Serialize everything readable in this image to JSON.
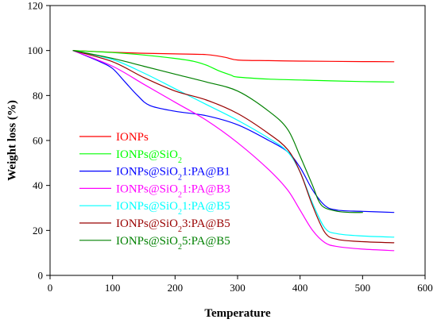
{
  "chart_data": {
    "type": "line",
    "title": "",
    "xlabel": "Temperature",
    "ylabel": "Weight loss (%)",
    "xlim": [
      0,
      600
    ],
    "ylim": [
      0,
      120
    ],
    "xticks": [
      0,
      100,
      200,
      300,
      400,
      500,
      600
    ],
    "yticks": [
      0,
      20,
      40,
      60,
      80,
      100,
      120
    ],
    "grid": false,
    "legend_position": "bottom-left",
    "series": [
      {
        "name": "IONPs",
        "color": "#ff0000",
        "x": [
          37,
          100,
          150,
          200,
          250,
          280,
          300,
          350,
          400,
          450,
          500,
          550
        ],
        "y": [
          100,
          99.2,
          98.8,
          98.5,
          98.2,
          97,
          95.8,
          95.5,
          95.3,
          95.2,
          95.1,
          95
        ]
      },
      {
        "name": "IONPs@SiO_2",
        "color": "#00ff00",
        "x": [
          37,
          100,
          150,
          200,
          230,
          250,
          270,
          290,
          300,
          350,
          400,
          450,
          500,
          550
        ],
        "y": [
          100,
          99.1,
          98,
          96.5,
          95.2,
          93.5,
          91,
          89,
          88.2,
          87.3,
          86.9,
          86.5,
          86.2,
          86
        ]
      },
      {
        "name": "IONPs@SiO_21:PA@B1",
        "color": "#0000ff",
        "x": [
          37,
          80,
          100,
          120,
          140,
          160,
          200,
          250,
          300,
          350,
          380,
          400,
          420,
          440,
          460,
          500,
          550
        ],
        "y": [
          100,
          95,
          92,
          86,
          80,
          75.5,
          73,
          71,
          67,
          60,
          55,
          48,
          38,
          31,
          29,
          28.5,
          28
        ]
      },
      {
        "name": "IONPs@SiO_21:PA@B3",
        "color": "#ff00ff",
        "x": [
          37,
          100,
          150,
          200,
          250,
          300,
          350,
          380,
          400,
          420,
          440,
          460,
          500,
          550
        ],
        "y": [
          100,
          93,
          85,
          77,
          69,
          59,
          47,
          38,
          29,
          20,
          14.5,
          12.8,
          11.7,
          11
        ]
      },
      {
        "name": "IONPs@SiO_21:PA@B5",
        "color": "#00ffff",
        "x": [
          37,
          100,
          150,
          200,
          250,
          300,
          350,
          380,
          400,
          420,
          440,
          460,
          500,
          550
        ],
        "y": [
          100,
          96,
          90,
          83,
          76,
          69,
          61,
          55,
          46,
          32,
          21,
          18.5,
          17.5,
          17
        ]
      },
      {
        "name": "IONPs@SiO_23:PA@B5",
        "color": "#990000",
        "x": [
          37,
          100,
          150,
          200,
          250,
          300,
          350,
          380,
          400,
          420,
          440,
          460,
          500,
          550
        ],
        "y": [
          100,
          95,
          88,
          82,
          78,
          72,
          63,
          56,
          46,
          31,
          19,
          16,
          15,
          14.5
        ]
      },
      {
        "name": "IONPs@SiO_25:PA@B5",
        "color": "#008000",
        "x": [
          37,
          100,
          150,
          200,
          250,
          300,
          350,
          380,
          400,
          420,
          430,
          440,
          460,
          480,
          500
        ],
        "y": [
          100,
          96.5,
          93,
          89.5,
          86,
          82,
          73,
          65,
          53,
          40,
          33,
          30,
          28.5,
          28,
          28
        ]
      }
    ]
  }
}
